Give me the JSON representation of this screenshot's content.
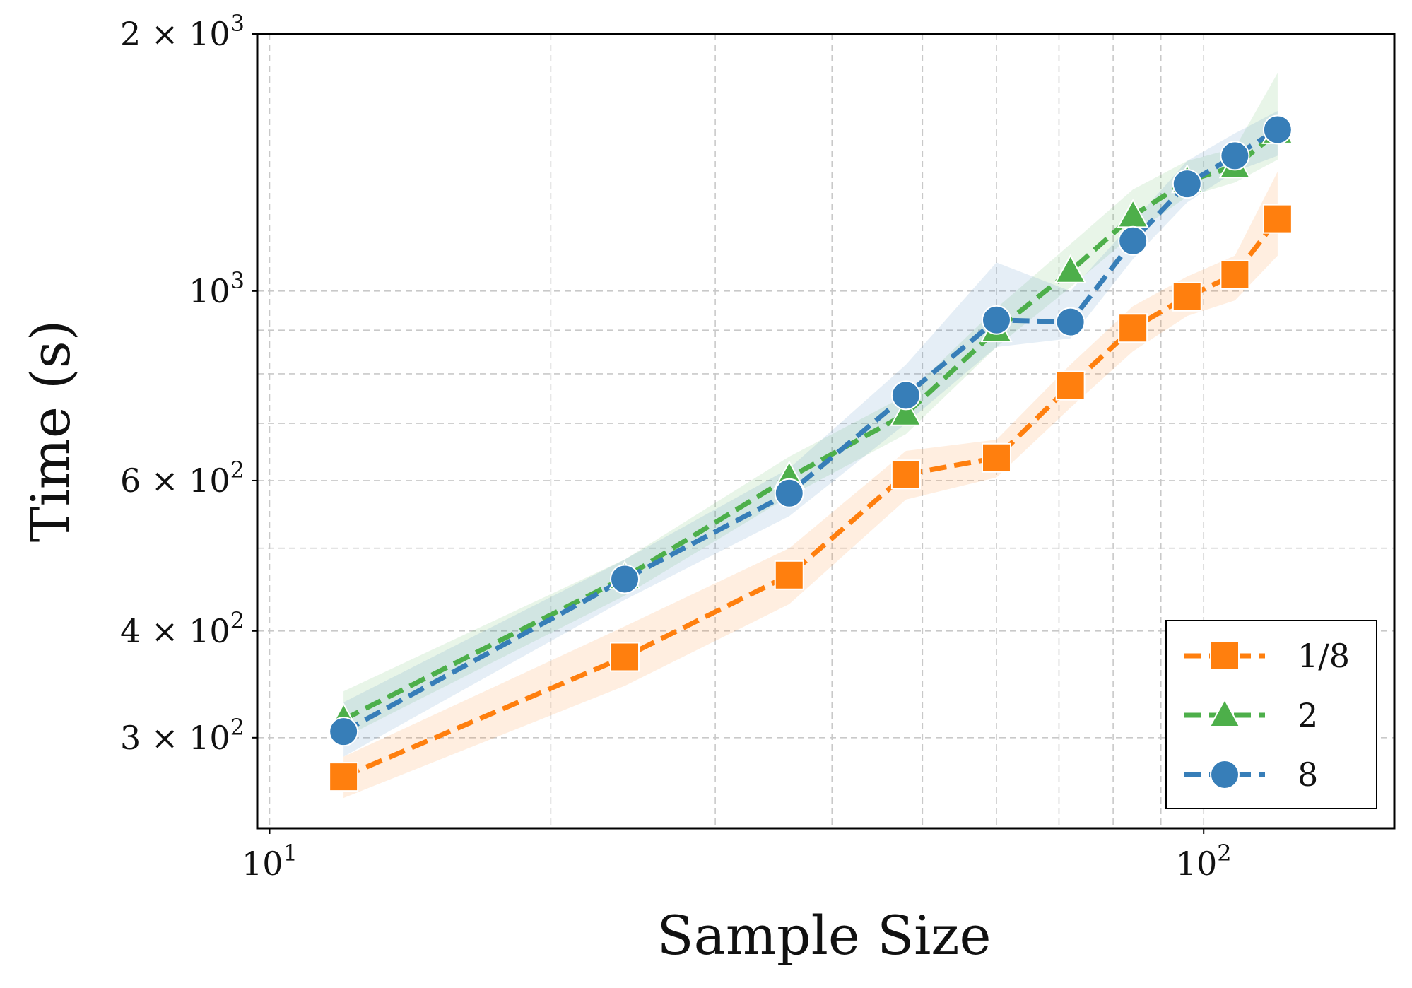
{
  "chart_data": {
    "type": "line",
    "xlabel": "Sample Size",
    "ylabel": "Time (s)",
    "xscale": "log",
    "yscale": "log",
    "xlim": [
      9.7,
      160
    ],
    "ylim": [
      235,
      2000
    ],
    "grid": true,
    "legend_position": "bottom-right",
    "x_major_ticks": [
      {
        "value": 10,
        "base": "10",
        "exp": "1"
      },
      {
        "value": 100,
        "base": "10",
        "exp": "2"
      }
    ],
    "x_minor_gridlines": [
      20,
      30,
      40,
      50,
      60,
      70,
      80,
      90
    ],
    "y_ticks": [
      {
        "value": 2000,
        "mant": "2 × ",
        "base": "10",
        "exp": "3"
      },
      {
        "value": 1000,
        "mant": "",
        "base": "10",
        "exp": "3"
      },
      {
        "value": 600,
        "mant": "6 × ",
        "base": "10",
        "exp": "2"
      },
      {
        "value": 400,
        "mant": "4 × ",
        "base": "10",
        "exp": "2"
      },
      {
        "value": 300,
        "mant": "3 × ",
        "base": "10",
        "exp": "2"
      }
    ],
    "y_minor_gridlines": [
      500,
      700,
      800,
      900
    ],
    "x": [
      12,
      24,
      36,
      48,
      60,
      72,
      84,
      96,
      108,
      120
    ],
    "series": [
      {
        "name": "1/8",
        "color": "#ff7f0e",
        "marker": "square",
        "values": [
          270,
          373,
          465,
          610,
          638,
          775,
          905,
          985,
          1045,
          1215
        ],
        "band_low": [
          255,
          345,
          430,
          570,
          605,
          730,
          850,
          935,
          975,
          1100
        ],
        "band_high": [
          285,
          405,
          500,
          650,
          670,
          820,
          960,
          1040,
          1100,
          1380
        ]
      },
      {
        "name": "2",
        "color": "#4daf4a",
        "marker": "triangle",
        "values": [
          315,
          462,
          605,
          718,
          900,
          1055,
          1225,
          1345,
          1400,
          1535
        ],
        "band_low": [
          300,
          440,
          575,
          680,
          860,
          1010,
          1165,
          1290,
          1340,
          1425
        ],
        "band_high": [
          340,
          485,
          640,
          755,
          955,
          1135,
          1315,
          1420,
          1470,
          1800
        ]
      },
      {
        "name": "8",
        "color": "#377eb8",
        "marker": "circle",
        "values": [
          305,
          460,
          580,
          755,
          925,
          920,
          1145,
          1335,
          1440,
          1545
        ],
        "band_low": [
          285,
          435,
          545,
          700,
          860,
          880,
          1090,
          1270,
          1380,
          1440
        ],
        "band_high": [
          330,
          485,
          620,
          820,
          1080,
          1000,
          1205,
          1420,
          1530,
          1625
        ]
      }
    ]
  }
}
